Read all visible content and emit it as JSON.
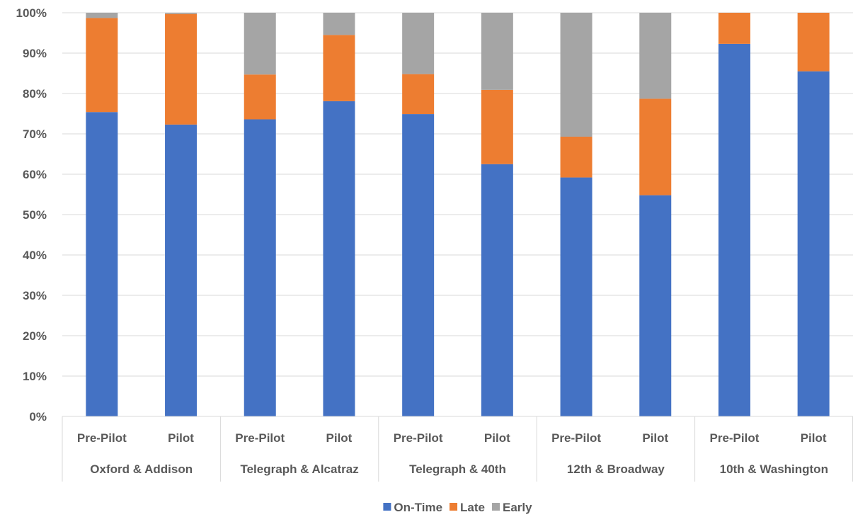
{
  "chart_data": {
    "type": "bar",
    "stacked": true,
    "normalized": true,
    "title": "",
    "xlabel": "",
    "ylabel": "",
    "ylim": [
      0,
      100
    ],
    "ytick_step": 10,
    "y_format": "percent",
    "grid": true,
    "legend_position": "bottom",
    "groups": [
      "Oxford & Addison",
      "Telegraph & Alcatraz",
      "Telegraph & 40th",
      "12th & Broadway",
      "10th & Washington"
    ],
    "subcategories": [
      "Pre-Pilot",
      "Pilot"
    ],
    "categories": [
      "Pre-Pilot",
      "Pilot",
      "Pre-Pilot",
      "Pilot",
      "Pre-Pilot",
      "Pilot",
      "Pre-Pilot",
      "Pilot",
      "Pre-Pilot",
      "Pilot"
    ],
    "series": [
      {
        "name": "On-Time",
        "color": "#4472C4",
        "values": [
          75.4,
          72.3,
          73.6,
          78.1,
          74.9,
          62.5,
          59.2,
          54.8,
          92.3,
          85.5
        ]
      },
      {
        "name": "Late",
        "color": "#ED7D31",
        "values": [
          23.3,
          27.4,
          11.1,
          16.4,
          9.9,
          18.4,
          10.1,
          23.9,
          7.7,
          14.5
        ]
      },
      {
        "name": "Early",
        "color": "#A5A5A5",
        "values": [
          1.3,
          0.3,
          15.3,
          5.5,
          15.2,
          19.1,
          30.7,
          21.3,
          0,
          0
        ]
      }
    ]
  }
}
